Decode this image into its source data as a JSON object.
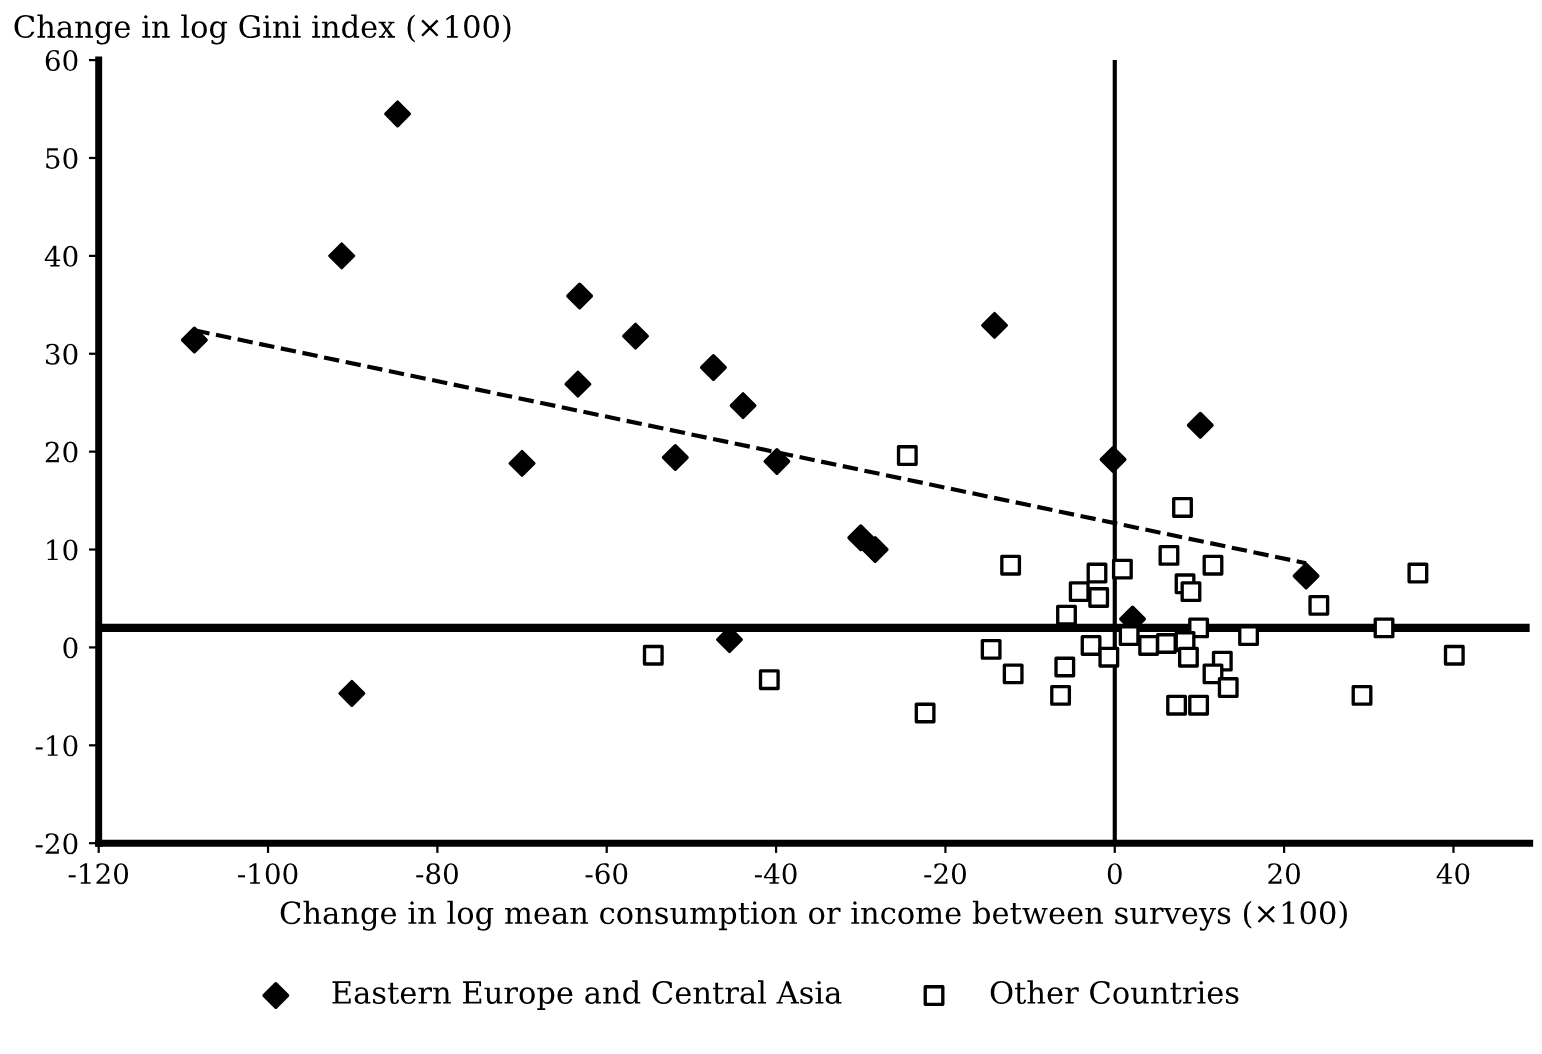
{
  "chart_data": {
    "type": "scatter",
    "xlabel": "Change in log mean consumption or income between surveys (×100)",
    "ylabel": "Change in log Gini index (×100)",
    "xlim": [
      -120,
      49
    ],
    "ylim": [
      -20,
      60
    ],
    "xticks": [
      -120,
      -100,
      -80,
      -60,
      -40,
      -20,
      0,
      20,
      40
    ],
    "yticks": [
      -20,
      -10,
      0,
      10,
      20,
      30,
      40,
      50,
      60
    ],
    "grid": false,
    "legend": "bottom",
    "ref_lines": [
      {
        "axis": "y",
        "value": 2,
        "label": null,
        "color": "#000000",
        "line_style": "solid"
      },
      {
        "axis": "x",
        "value": 0,
        "label": null,
        "color": "#000000",
        "line_style": "solid"
      }
    ],
    "series": [
      {
        "name": "Eastern Europe and Central Asia",
        "color": "#000000",
        "marker": "diamond",
        "x": [
          -108.7,
          -91.3,
          -84.7,
          -63.2,
          -63.4,
          -56.6,
          -47.4,
          -43.9,
          -70,
          -51.9,
          -39.9,
          -30,
          -28.3,
          -14.2,
          -0.2,
          10.1,
          22.6,
          -45.5,
          -90.1,
          2.1
        ],
        "values": [
          31.4,
          40,
          54.5,
          35.9,
          26.9,
          31.8,
          28.6,
          24.7,
          18.8,
          19.4,
          19.0,
          11.2,
          10.0,
          32.9,
          19.2,
          22.7,
          7.3,
          0.8,
          -4.7,
          2.9
        ]
      },
      {
        "name": "Other Countries",
        "color": "#000000",
        "marker": "square",
        "x": [
          -24.5,
          8.0,
          -12.3,
          -2.1,
          0.9,
          6.4,
          11.6,
          -4.2,
          -1.9,
          8.3,
          9.0,
          35.8,
          24.1,
          -5.7,
          1.7,
          4.0,
          6.1,
          9.9,
          8.3,
          15.8,
          31.8,
          40.1,
          -14.6,
          -2.8,
          -0.7,
          -5.9,
          -12.0,
          8.7,
          12.7,
          11.6,
          13.4,
          -6.4,
          7.3,
          9.9,
          29.2,
          -22.4,
          -40.8,
          -54.5
        ],
        "values": [
          19.6,
          14.3,
          8.4,
          7.6,
          8.0,
          9.4,
          8.4,
          5.7,
          5.1,
          6.5,
          5.7,
          7.6,
          4.3,
          3.3,
          1.2,
          0.2,
          0.4,
          2.0,
          0.6,
          1.2,
          2.0,
          -0.8,
          -0.2,
          0.2,
          -1.0,
          -2.0,
          -2.7,
          -1.0,
          -1.4,
          -2.7,
          -4.1,
          -4.9,
          -5.9,
          -5.9,
          -4.9,
          -6.7,
          -3.3,
          -0.8
        ]
      },
      {
        "type": "line",
        "color": "#000000",
        "line_style": "dashed",
        "marker": "none",
        "x": [
          -108.7,
          22.6
        ],
        "values": [
          32.4,
          8.6
        ]
      }
    ]
  }
}
